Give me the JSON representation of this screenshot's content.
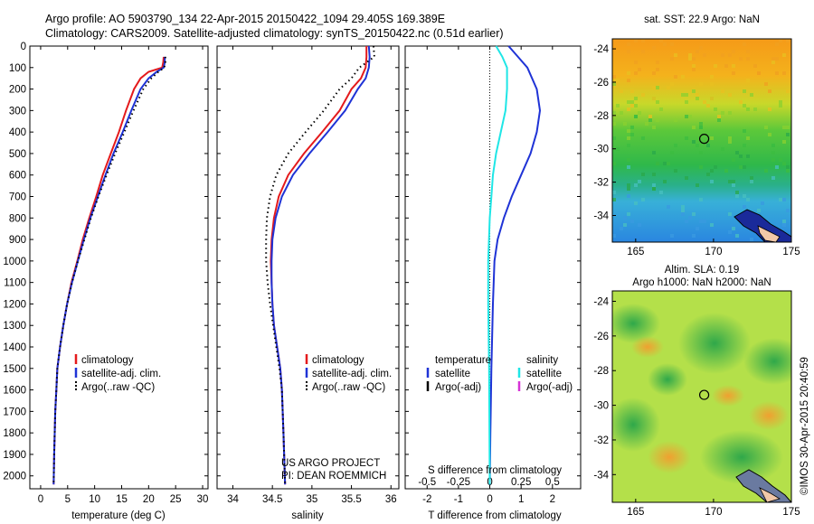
{
  "header": {
    "line1": "Argo profile: AO 5903790_134 22-Apr-2015 20150422_1094 29.405S 169.389E",
    "line2": "Climatology: CARS2009. Satellite-adjusted climatology: synTS_20150422.nc (0.51d earlier)"
  },
  "colors": {
    "climatology": "#e41a1c",
    "satellite": "#1f33d6",
    "salinity_satellite": "#1fe6e6",
    "argo_adj": "#d633d6",
    "argo": "#000000"
  },
  "chart_data": [
    {
      "type": "line",
      "id": "temperature",
      "xlabel": "temperature (deg C)",
      "ylabel": "",
      "xlim": [
        -2,
        31
      ],
      "ylim": [
        2060,
        0
      ],
      "xticks": [
        0,
        5,
        10,
        15,
        20,
        25,
        30
      ],
      "yticks": [
        0,
        100,
        200,
        300,
        400,
        500,
        600,
        700,
        800,
        900,
        1000,
        1100,
        1200,
        1300,
        1400,
        1500,
        1600,
        1700,
        1800,
        1900,
        2000
      ],
      "legend": [
        "climatology",
        "satellite-adj. clim.",
        "Argo(..raw -QC)"
      ],
      "series": [
        {
          "name": "climatology",
          "color": "#e41a1c",
          "style": "solid",
          "x": [
            22.8,
            22.7,
            22.5,
            20.0,
            18.5,
            17.3,
            15.8,
            14.5,
            13.0,
            11.5,
            10.3,
            9.0,
            7.8,
            6.8,
            5.7,
            4.9,
            4.2,
            3.6,
            3.1,
            2.9,
            2.7,
            2.5,
            2.4
          ],
          "y": [
            50,
            75,
            100,
            120,
            150,
            200,
            300,
            400,
            500,
            600,
            700,
            800,
            900,
            1000,
            1100,
            1200,
            1300,
            1400,
            1500,
            1600,
            1700,
            1900,
            2040
          ]
        },
        {
          "name": "satellite-adj. clim.",
          "color": "#1f33d6",
          "style": "solid",
          "x": [
            23.0,
            23.0,
            22.8,
            21.5,
            20.0,
            18.5,
            16.8,
            15.2,
            13.5,
            12.0,
            10.6,
            9.2,
            8.0,
            6.9,
            5.8,
            4.9,
            4.2,
            3.6,
            3.1,
            2.9,
            2.7,
            2.5,
            2.4
          ],
          "y": [
            50,
            75,
            100,
            120,
            150,
            200,
            300,
            400,
            500,
            600,
            700,
            800,
            900,
            1000,
            1100,
            1200,
            1300,
            1400,
            1500,
            1600,
            1700,
            1900,
            2040
          ]
        },
        {
          "name": "Argo(..raw -QC)",
          "color": "#000000",
          "style": "dotted",
          "x": [
            23.1,
            23.1,
            22.9,
            21.8,
            20.5,
            19.0,
            17.2,
            15.5,
            13.8,
            12.2,
            10.7,
            9.3,
            8.1,
            6.9,
            5.8,
            4.9,
            4.2,
            3.6,
            3.1,
            2.9,
            2.7,
            2.5,
            2.4
          ],
          "y": [
            50,
            75,
            100,
            120,
            150,
            200,
            300,
            400,
            500,
            600,
            700,
            800,
            900,
            1000,
            1100,
            1200,
            1300,
            1400,
            1500,
            1600,
            1700,
            1900,
            2040
          ]
        }
      ]
    },
    {
      "type": "line",
      "id": "salinity",
      "xlabel": "salinity",
      "ylabel": "",
      "xlim": [
        33.8,
        36.1
      ],
      "ylim": [
        2060,
        0
      ],
      "xticks": [
        34,
        34.5,
        35,
        35.5,
        36
      ],
      "legend": [
        "climatology",
        "satellite-adj. clim.",
        "Argo(..raw -QC)"
      ],
      "annotations": [
        "US ARGO PROJECT",
        "PI: DEAN ROEMMICH"
      ],
      "series": [
        {
          "name": "climatology",
          "color": "#e41a1c",
          "style": "solid",
          "x": [
            35.69,
            35.69,
            35.68,
            35.62,
            35.5,
            35.35,
            35.13,
            34.9,
            34.7,
            34.58,
            34.52,
            34.49,
            34.48,
            34.49,
            34.5,
            34.52,
            34.56,
            34.6,
            34.62,
            34.64,
            34.66
          ],
          "y": [
            0,
            50,
            100,
            150,
            200,
            300,
            400,
            500,
            600,
            700,
            800,
            900,
            1000,
            1100,
            1200,
            1300,
            1400,
            1500,
            1600,
            1800,
            2040
          ]
        },
        {
          "name": "satellite-adj. clim.",
          "color": "#1f33d6",
          "style": "solid",
          "x": [
            35.72,
            35.73,
            35.72,
            35.68,
            35.58,
            35.42,
            35.2,
            34.97,
            34.76,
            34.62,
            34.54,
            34.5,
            34.49,
            34.49,
            34.5,
            34.52,
            34.56,
            34.6,
            34.62,
            34.64,
            34.66
          ],
          "y": [
            0,
            50,
            100,
            150,
            200,
            300,
            400,
            500,
            600,
            700,
            800,
            900,
            1000,
            1100,
            1200,
            1300,
            1400,
            1500,
            1600,
            1800,
            2040
          ]
        },
        {
          "name": "Argo(..raw -QC)",
          "color": "#000000",
          "style": "dotted",
          "x": [
            35.78,
            35.79,
            35.6,
            35.5,
            35.35,
            35.15,
            34.92,
            34.7,
            34.55,
            34.47,
            34.43,
            34.42,
            34.42,
            34.44,
            34.47,
            34.51,
            34.55,
            34.59,
            34.62,
            34.64,
            34.66
          ],
          "y": [
            0,
            50,
            100,
            150,
            200,
            300,
            400,
            500,
            600,
            700,
            800,
            900,
            1000,
            1100,
            1200,
            1300,
            1400,
            1500,
            1600,
            1800,
            2040
          ]
        }
      ]
    },
    {
      "type": "line",
      "id": "difference",
      "xlabel": "T difference from climatology",
      "xlabel2": "S difference from climatology",
      "xlim": [
        -2.7,
        2.9
      ],
      "ylim": [
        2060,
        0
      ],
      "xticks": [
        -2,
        -1,
        0,
        1,
        2
      ],
      "xticks2": [
        -0.5,
        -0.25,
        0,
        0.25,
        0.5
      ],
      "legend_groups": [
        {
          "heading": "temperature",
          "items": [
            "satellite",
            "Argo(-adj)"
          ]
        },
        {
          "heading": "salinity",
          "items": [
            "satellite",
            "Argo(-adj)"
          ]
        }
      ],
      "series": [
        {
          "name": "temperature satellite",
          "color": "#1f33d6",
          "style": "solid",
          "x": [
            0.6,
            0.9,
            1.2,
            1.5,
            1.6,
            1.5,
            1.3,
            1.0,
            0.7,
            0.45,
            0.25,
            0.15,
            0.1,
            0.05,
            0.02,
            0.0
          ],
          "y": [
            0,
            50,
            100,
            200,
            300,
            400,
            500,
            600,
            700,
            800,
            900,
            1000,
            1200,
            1500,
            1800,
            2040
          ]
        },
        {
          "name": "salinity satellite",
          "color": "#1fe6e6",
          "style": "solid",
          "x": [
            0.2,
            0.4,
            0.55,
            0.55,
            0.5,
            0.35,
            0.2,
            0.1,
            0.05,
            0.0,
            -0.05,
            -0.05,
            -0.02,
            0.0
          ],
          "y": [
            0,
            50,
            100,
            200,
            300,
            400,
            500,
            600,
            700,
            800,
            1000,
            1200,
            1500,
            2040
          ]
        }
      ]
    },
    {
      "type": "heatmap",
      "id": "sst-map",
      "title": "sat. SST: 22.9  Argo: NaN",
      "xlim": [
        163.5,
        175
      ],
      "ylim": [
        -35.6,
        -23.4
      ],
      "xticks": [
        165,
        170,
        175
      ],
      "yticks": [
        -24,
        -26,
        -28,
        -30,
        -32,
        -34
      ],
      "marker": {
        "x": 169.4,
        "y": -29.4
      }
    },
    {
      "type": "heatmap",
      "id": "sla-map",
      "title": "Altim. SLA: 0.19",
      "subtitle": "Argo h1000: NaN h2000: NaN",
      "xlim": [
        163.5,
        175
      ],
      "ylim": [
        -35.6,
        -23.4
      ],
      "xticks": [
        165,
        170,
        175
      ],
      "yticks": [
        -24,
        -26,
        -28,
        -30,
        -32,
        -34
      ],
      "marker": {
        "x": 169.4,
        "y": -29.4
      }
    }
  ],
  "credit": "©IMOS 30-Apr-2015 20:40:59"
}
